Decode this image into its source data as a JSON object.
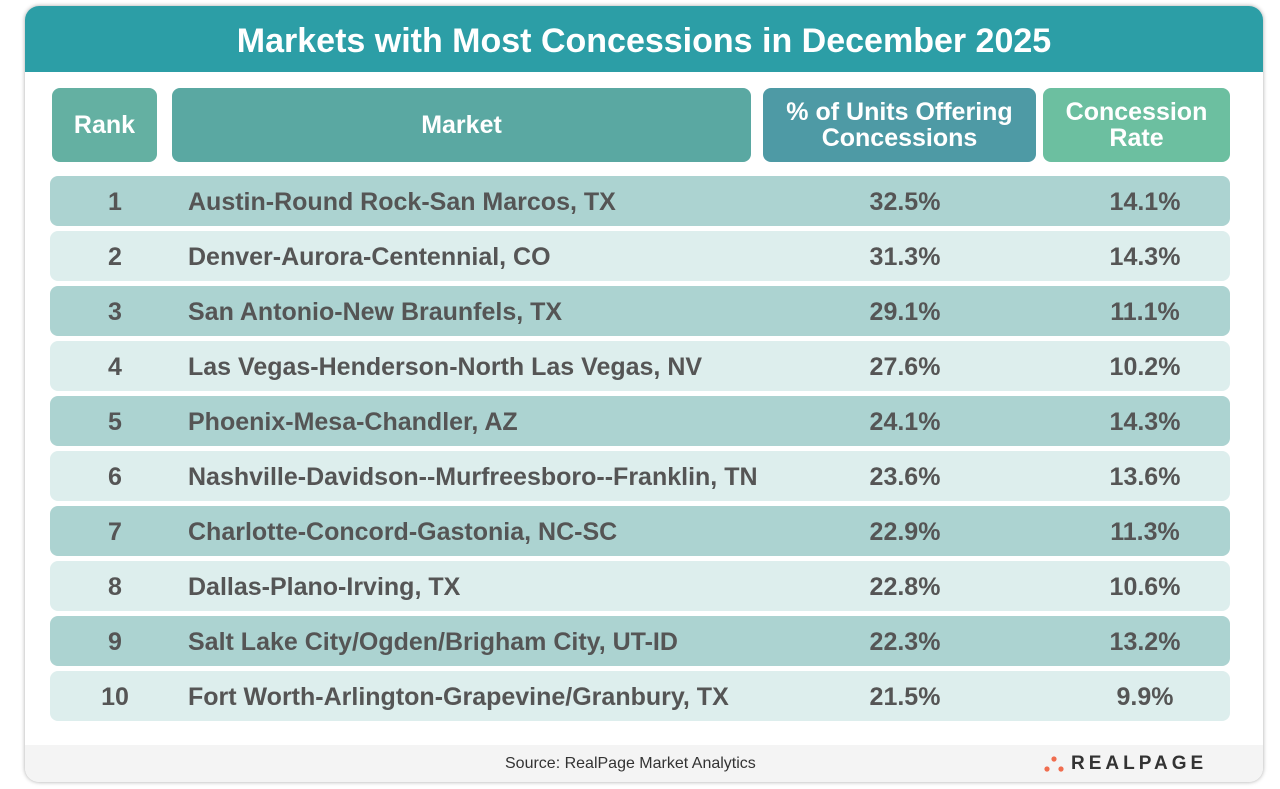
{
  "chart_data": {
    "type": "table",
    "title": "Markets with Most Concessions in December 2025",
    "columns": [
      "Rank",
      "Market",
      "% of Units Offering Concessions",
      "Concession Rate"
    ],
    "rows": [
      [
        "1",
        "Austin-Round Rock-San Marcos, TX",
        "32.5%",
        "14.1%"
      ],
      [
        "2",
        "Denver-Aurora-Centennial, CO",
        "31.3%",
        "14.3%"
      ],
      [
        "3",
        "San Antonio-New Braunfels, TX",
        "29.1%",
        "11.1%"
      ],
      [
        "4",
        "Las Vegas-Henderson-North Las Vegas, NV",
        "27.6%",
        "10.2%"
      ],
      [
        "5",
        "Phoenix-Mesa-Chandler, AZ",
        "24.1%",
        "14.3%"
      ],
      [
        "6",
        "Nashville-Davidson--Murfreesboro--Franklin, TN",
        "23.6%",
        "13.6%"
      ],
      [
        "7",
        "Charlotte-Concord-Gastonia, NC-SC",
        "22.9%",
        "11.3%"
      ],
      [
        "8",
        "Dallas-Plano-Irving, TX",
        "22.8%",
        "10.6%"
      ],
      [
        "9",
        "Salt Lake City/Ogden/Brigham City, UT-ID",
        "22.3%",
        "13.2%"
      ],
      [
        "10",
        "Fort Worth-Arlington-Grapevine/Granbury, TX",
        "21.5%",
        "9.9%"
      ]
    ]
  },
  "footer": {
    "source": "Source:  RealPage Market Analytics",
    "logo": "REALPAGE"
  },
  "colors": {
    "title_bg": "#2c9ea6",
    "odd_row": "#acd3d1",
    "even_row": "#ddeeed",
    "logo_dots": "#f06d4f"
  }
}
